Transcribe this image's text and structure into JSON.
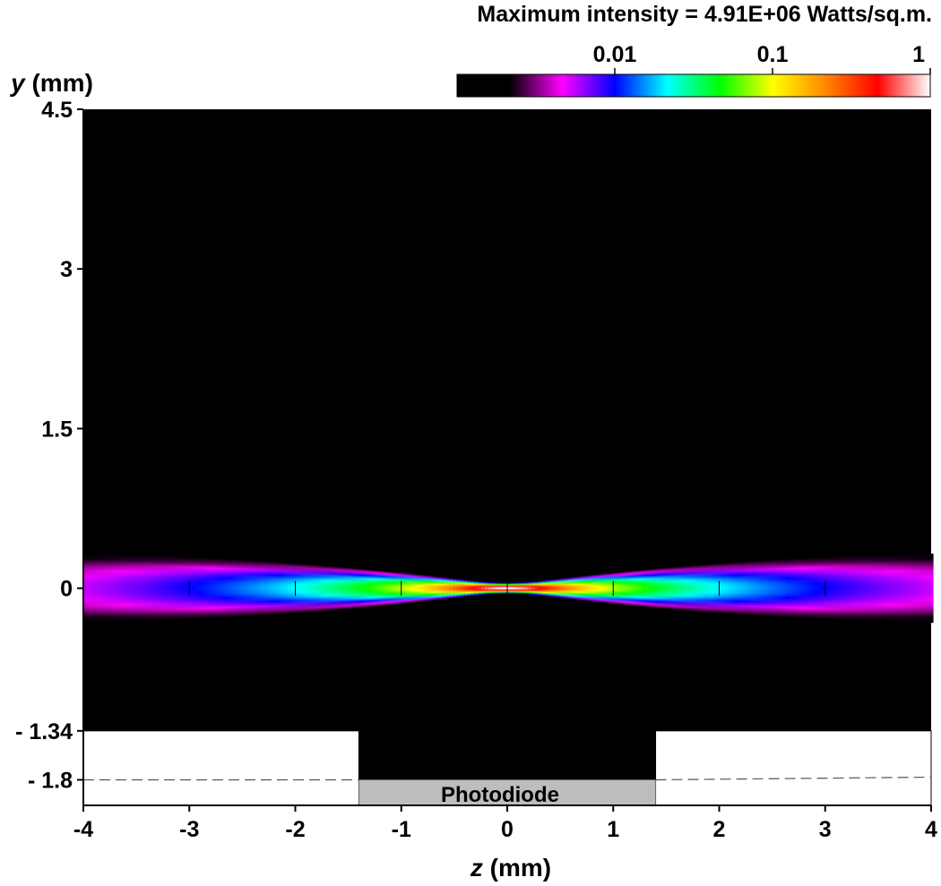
{
  "chart_data": {
    "type": "heatmap",
    "header": "Maximum intensity = 4.91E+06 Watts/sq.m.",
    "colorbar": {
      "scale": "log",
      "range": [
        0.001,
        1
      ],
      "tick_values": [
        0.01,
        0.1,
        1
      ],
      "tick_labels": [
        "0.01",
        "0.1",
        "1"
      ],
      "colors": [
        "#000000",
        "#000000",
        "#ff00ff",
        "#0000ff",
        "#00ffff",
        "#00ff00",
        "#ffff00",
        "#ff8800",
        "#ff0000",
        "#ffffff"
      ]
    },
    "xlabel": {
      "var": "z",
      "unit": " (mm)"
    },
    "ylabel": {
      "var": "y",
      "unit": " (mm)"
    },
    "xlim": [
      -4,
      4
    ],
    "ylim": [
      -2.04,
      4.5
    ],
    "x_ticks": [
      -4,
      -3,
      -2,
      -1,
      0,
      1,
      2,
      3,
      4
    ],
    "x_tick_labels": [
      "-4",
      "-3",
      "-2",
      "-1",
      "0",
      "1",
      "2",
      "3",
      "4"
    ],
    "y_ticks": [
      4.5,
      3,
      1.5,
      0,
      -1.34,
      -1.8
    ],
    "y_tick_labels": [
      "4.5",
      "3",
      "1.5",
      "0",
      "- 1.34",
      "- 1.8"
    ],
    "beam": {
      "axis_y": 0,
      "waist_z": 0,
      "peak_relative_intensity": 1,
      "edge_relative_intensity": 0.01,
      "marker_z": [
        -3,
        -2,
        -1,
        0,
        1,
        2,
        3
      ]
    },
    "plate_top_y": -1.34,
    "photodiode": {
      "label": "Photodiode",
      "z_range": [
        -1.4,
        1.4
      ],
      "y_range": [
        -2.04,
        -1.8
      ]
    },
    "dashed_line_y": -1.8
  }
}
